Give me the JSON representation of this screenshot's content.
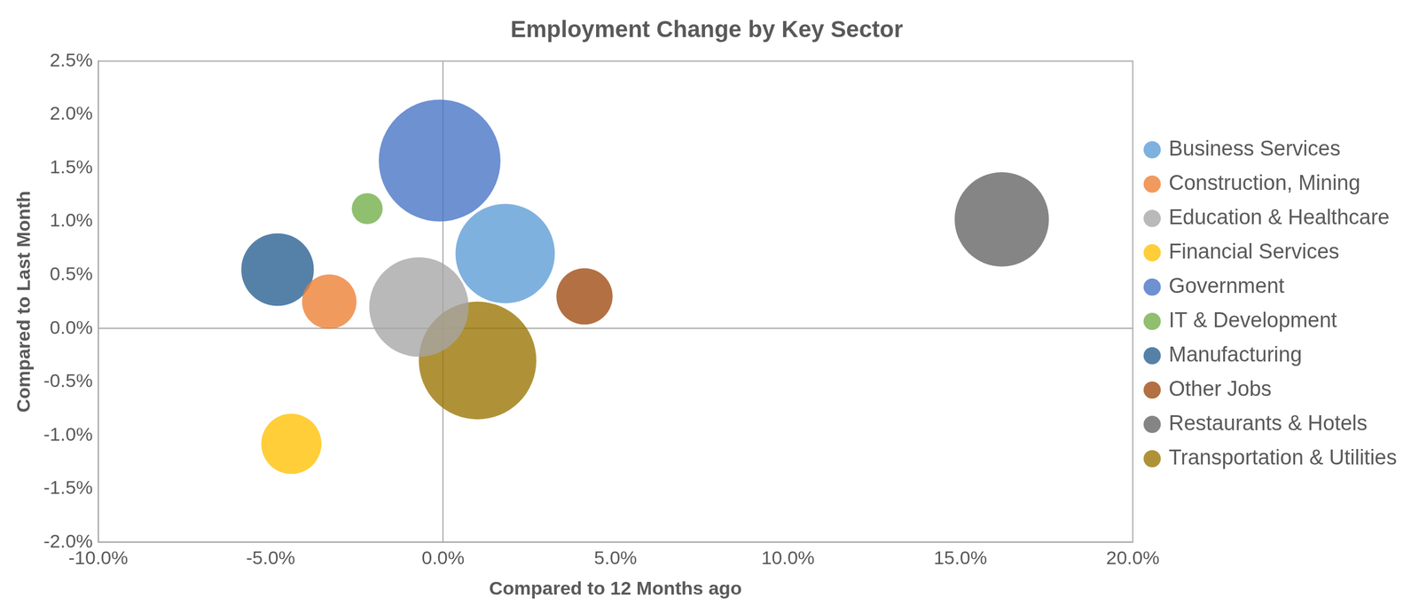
{
  "chart_data": {
    "type": "bubble",
    "title": "Employment Change by Key Sector",
    "x_label": "Compared to 12 Months ago",
    "y_label": "Compared to Last Month",
    "xlim": [
      -10,
      20
    ],
    "xticks": [
      {
        "value": -10,
        "label": "-10.0%"
      },
      {
        "value": -5,
        "label": "-5.0%"
      },
      {
        "value": 0,
        "label": "0.0%"
      },
      {
        "value": 5,
        "label": "5.0%"
      },
      {
        "value": 10,
        "label": "10.0%"
      },
      {
        "value": 15,
        "label": "15.0%"
      },
      {
        "value": 20,
        "label": "20.0%"
      }
    ],
    "ylim": [
      -2,
      2.5
    ],
    "yticks": [
      {
        "value": -2,
        "label": "-2.0%"
      },
      {
        "value": -1.5,
        "label": "-1.5%"
      },
      {
        "value": -1,
        "label": "-1.0%"
      },
      {
        "value": -0.5,
        "label": "-0.5%"
      },
      {
        "value": 0,
        "label": "0.0%"
      },
      {
        "value": 0.5,
        "label": "0.5%"
      },
      {
        "value": 1,
        "label": "1.0%"
      },
      {
        "value": 1.5,
        "label": "1.5%"
      },
      {
        "value": 2,
        "label": "2.0%"
      },
      {
        "value": 2.5,
        "label": "2.5%"
      }
    ],
    "grid": false,
    "legend": "right",
    "series": [
      {
        "name": "Business Services",
        "color": "#5b9bd5",
        "x": 1.8,
        "y": 0.7,
        "size": 3000
      },
      {
        "name": "Construction, Mining",
        "color": "#ed7d31",
        "x": -3.3,
        "y": 0.25,
        "size": 900
      },
      {
        "name": "Education & Healthcare",
        "color": "#a5a5a5",
        "x": -0.7,
        "y": 0.2,
        "size": 3000
      },
      {
        "name": "Financial Services",
        "color": "#ffc000",
        "x": -4.4,
        "y": -1.08,
        "size": 1100
      },
      {
        "name": "Government",
        "color": "#4472c4",
        "x": -0.1,
        "y": 1.57,
        "size": 4500
      },
      {
        "name": "IT & Development",
        "color": "#70ad47",
        "x": -2.2,
        "y": 1.12,
        "size": 290
      },
      {
        "name": "Manufacturing",
        "color": "#255e91",
        "x": -4.8,
        "y": 0.55,
        "size": 1600
      },
      {
        "name": "Other Jobs",
        "color": "#9e480e",
        "x": 4.1,
        "y": 0.3,
        "size": 960
      },
      {
        "name": "Restaurants & Hotels",
        "color": "#636363",
        "x": 16.2,
        "y": 1.02,
        "size": 2700
      },
      {
        "name": "Transportation & Utilities",
        "color": "#997300",
        "x": 1.0,
        "y": -0.3,
        "size": 4200
      }
    ]
  }
}
